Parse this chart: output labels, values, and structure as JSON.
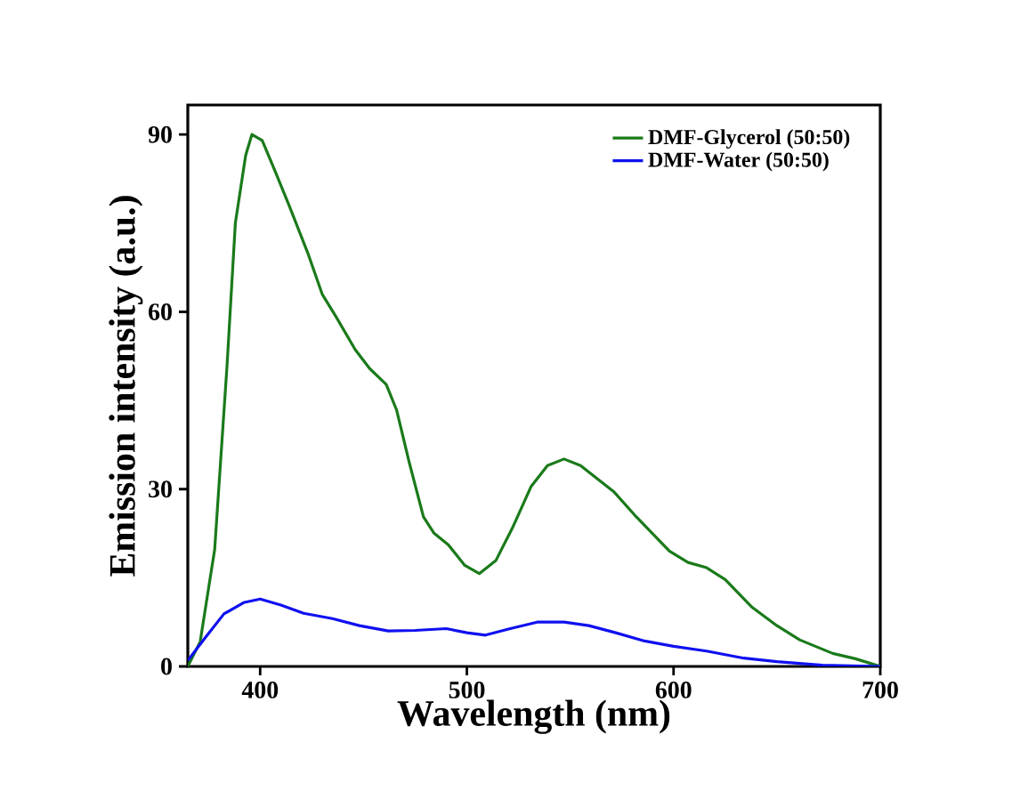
{
  "chart_data": {
    "type": "line",
    "xlabel": "Wavelength (nm)",
    "ylabel": "Emission intensity (a.u.)",
    "xlim": [
      365,
      700
    ],
    "ylim": [
      0,
      95
    ],
    "xticks": [
      400,
      500,
      600,
      700
    ],
    "yticks": [
      0,
      30,
      60,
      90
    ],
    "grid": false,
    "legend": "top right",
    "marker": "none",
    "line_style": "solid",
    "series": [
      {
        "name": "DMF-Glycerol (50:50)",
        "color": "#1a7a1a",
        "x": [
          365,
          371,
          378,
          384,
          388,
          393,
          396,
          401,
          407,
          414,
          423,
          430,
          437,
          446,
          453,
          461,
          466,
          472,
          479,
          484,
          491,
          499,
          506,
          514,
          522,
          531,
          539,
          547,
          555,
          571,
          582,
          598,
          607,
          616,
          625,
          638,
          650,
          661,
          677,
          688,
          700
        ],
        "values": [
          0,
          4.2,
          19.8,
          51,
          75,
          86.5,
          90,
          89,
          84,
          78,
          70,
          63,
          59,
          53.6,
          50.4,
          47.7,
          43.4,
          34.7,
          25.3,
          22.6,
          20.6,
          17.1,
          15.7,
          17.9,
          23.4,
          30.4,
          34,
          35.1,
          34,
          29.6,
          25.3,
          19.5,
          17.6,
          16.7,
          14.7,
          10,
          6.9,
          4.5,
          2.2,
          1.3,
          0
        ]
      },
      {
        "name": "DMF-Water (50:50)",
        "color": "#1010f0",
        "x": [
          365,
          373.5,
          382.5,
          392,
          400,
          410,
          421,
          435,
          448,
          462,
          475,
          490,
          500,
          509,
          521,
          534,
          547,
          559,
          572,
          586,
          600,
          616,
          634,
          650,
          672,
          700
        ],
        "values": [
          1,
          4.9,
          8.9,
          10.8,
          11.4,
          10.4,
          9,
          8.1,
          6.9,
          6,
          6.1,
          6.4,
          5.7,
          5.3,
          6.4,
          7.5,
          7.5,
          6.9,
          5.7,
          4.3,
          3.4,
          2.6,
          1.4,
          0.8,
          0.2,
          0
        ]
      }
    ]
  }
}
